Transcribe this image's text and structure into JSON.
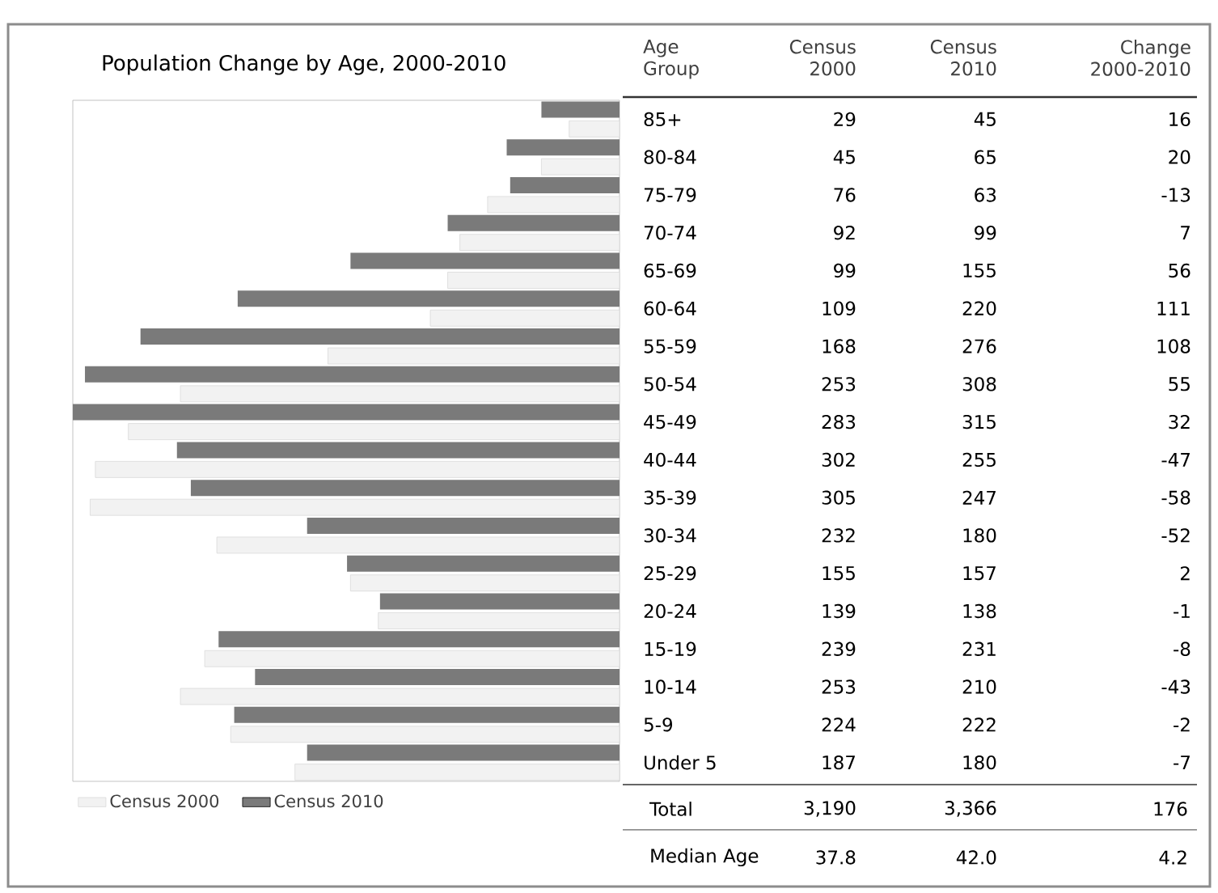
{
  "chart_data": [
    {
      "type": "bar",
      "orientation": "horizontal",
      "title": "Population Change by Age, 2000-2010",
      "ylabel": "Age Group",
      "categories": [
        "85+",
        "80-84",
        "75-79",
        "70-74",
        "65-69",
        "60-64",
        "55-59",
        "50-54",
        "45-49",
        "40-44",
        "35-39",
        "30-34",
        "25-29",
        "20-24",
        "15-19",
        "10-14",
        "5-9",
        "Under 5"
      ],
      "series": [
        {
          "name": "Census 2000",
          "color": "#f2f2f2",
          "values": [
            29,
            45,
            76,
            92,
            99,
            109,
            168,
            253,
            283,
            302,
            305,
            232,
            155,
            139,
            239,
            253,
            224,
            187
          ]
        },
        {
          "name": "Census 2010",
          "color": "#7a7a7a",
          "values": [
            45,
            65,
            63,
            99,
            155,
            220,
            276,
            308,
            315,
            255,
            247,
            180,
            157,
            138,
            231,
            210,
            222,
            180
          ]
        }
      ],
      "xlim": [
        315,
        0
      ],
      "data_labels": true,
      "legend": "bottom",
      "tick_labels": "y"
    },
    {
      "type": "other",
      "series": [
        {
          "name": "Change 2000-2010",
          "values": [
            16,
            20,
            -13,
            7,
            56,
            111,
            108,
            55,
            32,
            -47,
            -58,
            -52,
            2,
            -1,
            -8,
            -43,
            -2,
            -7
          ],
          "value_labels": [
            "16",
            "20",
            "-13",
            "7",
            "56",
            "111",
            "108",
            "55",
            "32",
            "-47",
            "-58",
            "-52",
            "2",
            "-1",
            "-8",
            "-43",
            "-2",
            "-7"
          ]
        }
      ]
    },
    {
      "type": "other",
      "categories": [
        "Total",
        "Median Age"
      ],
      "series": [
        {
          "values": [
            3190,
            37.8
          ],
          "value_labels": [
            "3,190",
            "37.8"
          ]
        },
        {
          "values": [
            3366,
            42.0
          ],
          "value_labels": [
            "3,366",
            "42.0"
          ]
        },
        {
          "values": [
            176,
            4.2
          ],
          "value_labels": [
            "176",
            "4.2"
          ]
        }
      ]
    }
  ]
}
